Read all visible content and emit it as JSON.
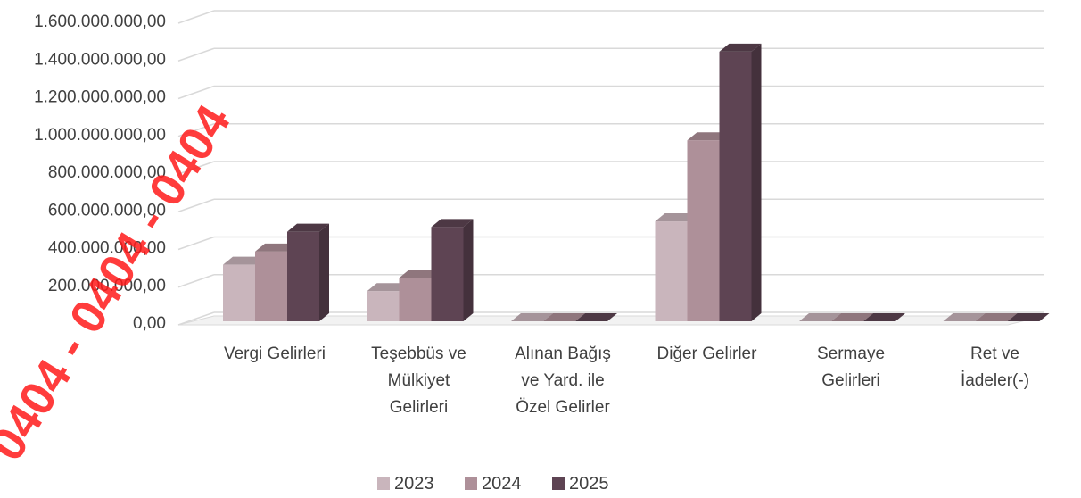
{
  "chart_data": {
    "type": "bar",
    "categories": [
      "Vergi Gelirleri",
      "Teşebbüs ve Mülkiyet Gelirleri",
      "Alınan Bağış ve Yard. ile Özel Gelirler",
      "Diğer Gelirler",
      "Sermaye Gelirleri",
      "Ret ve İadeler(-)"
    ],
    "category_lines": [
      [
        "Vergi Gelirleri"
      ],
      [
        "Teşebbüs ve",
        "Mülkiyet",
        "Gelirleri"
      ],
      [
        "Alınan Bağış",
        "ve Yard. ile",
        "Özel Gelirler"
      ],
      [
        "Diğer Gelirler"
      ],
      [
        "Sermaye",
        "Gelirleri"
      ],
      [
        "Ret ve",
        "İadeler(-)"
      ]
    ],
    "series": [
      {
        "name": "2023",
        "color": "#c9b5bc",
        "values": [
          300000000,
          160000000,
          0,
          530000000,
          0,
          0
        ]
      },
      {
        "name": "2024",
        "color": "#ae9099",
        "values": [
          370000000,
          230000000,
          0,
          960000000,
          0,
          0
        ]
      },
      {
        "name": "2025",
        "color": "#5e4453",
        "values": [
          475000000,
          500000000,
          0,
          1430000000,
          0,
          0
        ]
      }
    ],
    "yticks": [
      "0,00",
      "200.000.000,00",
      "400.000.000,00",
      "600.000.000,00",
      "800.000.000,00",
      "1.000.000.000,00",
      "1.200.000.000,00",
      "1.400.000.000,00",
      "1.600.000.000,00"
    ],
    "ylim": [
      0,
      1600000000
    ],
    "grid": true,
    "legend_position": "bottom",
    "title": "",
    "xlabel": "",
    "ylabel": ""
  },
  "watermark_text": "0404 - 0404 - 0404"
}
